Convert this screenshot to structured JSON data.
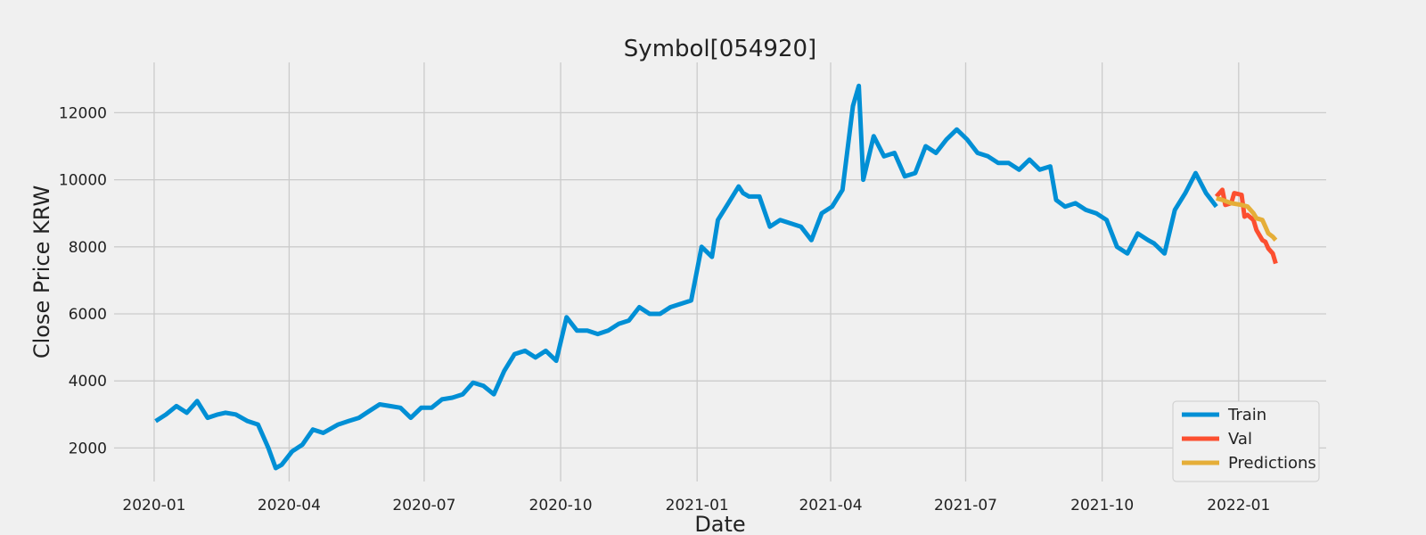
{
  "chart_data": {
    "type": "line",
    "title": "Symbol[054920]",
    "xlabel": "Date",
    "ylabel": "Close Price KRW",
    "x_tick_labels": [
      "2020-01",
      "2020-04",
      "2020-07",
      "2020-10",
      "2021-01",
      "2021-04",
      "2021-07",
      "2021-10",
      "2022-01"
    ],
    "x_ticks": [
      "2020-01-01",
      "2020-04-01",
      "2020-07-01",
      "2020-10-01",
      "2021-01-01",
      "2021-04-01",
      "2021-07-01",
      "2021-10-01",
      "2022-01-01"
    ],
    "y_ticks": [
      2000,
      4000,
      6000,
      8000,
      10000,
      12000
    ],
    "y_tick_labels": [
      "2000",
      "4000",
      "6000",
      "8000",
      "10000",
      "12000"
    ],
    "xlim": [
      "2019-12-05",
      "2022-03-01"
    ],
    "ylim": [
      1000,
      13500
    ],
    "grid": true,
    "legend_position": "bottom-right",
    "series": [
      {
        "name": "Train",
        "color": "#008fd5",
        "x": [
          "2020-01-02",
          "2020-01-09",
          "2020-01-16",
          "2020-01-23",
          "2020-01-30",
          "2020-02-06",
          "2020-02-13",
          "2020-02-18",
          "2020-02-25",
          "2020-03-04",
          "2020-03-11",
          "2020-03-18",
          "2020-03-23",
          "2020-03-27",
          "2020-04-03",
          "2020-04-10",
          "2020-04-17",
          "2020-04-24",
          "2020-05-04",
          "2020-05-11",
          "2020-05-18",
          "2020-05-25",
          "2020-06-01",
          "2020-06-08",
          "2020-06-15",
          "2020-06-22",
          "2020-06-29",
          "2020-07-06",
          "2020-07-13",
          "2020-07-20",
          "2020-07-27",
          "2020-08-03",
          "2020-08-10",
          "2020-08-17",
          "2020-08-24",
          "2020-08-31",
          "2020-09-07",
          "2020-09-14",
          "2020-09-21",
          "2020-09-28",
          "2020-10-05",
          "2020-10-12",
          "2020-10-19",
          "2020-10-26",
          "2020-11-02",
          "2020-11-09",
          "2020-11-16",
          "2020-11-23",
          "2020-11-30",
          "2020-12-07",
          "2020-12-14",
          "2020-12-21",
          "2020-12-28",
          "2021-01-04",
          "2021-01-11",
          "2021-01-15",
          "2021-01-22",
          "2021-01-29",
          "2021-02-01",
          "2021-02-05",
          "2021-02-12",
          "2021-02-19",
          "2021-02-26",
          "2021-03-05",
          "2021-03-12",
          "2021-03-19",
          "2021-03-26",
          "2021-04-02",
          "2021-04-09",
          "2021-04-16",
          "2021-04-20",
          "2021-04-23",
          "2021-04-30",
          "2021-05-07",
          "2021-05-14",
          "2021-05-21",
          "2021-05-28",
          "2021-06-04",
          "2021-06-11",
          "2021-06-18",
          "2021-06-25",
          "2021-07-02",
          "2021-07-09",
          "2021-07-16",
          "2021-07-23",
          "2021-07-30",
          "2021-08-06",
          "2021-08-13",
          "2021-08-20",
          "2021-08-27",
          "2021-08-31",
          "2021-09-06",
          "2021-09-13",
          "2021-09-20",
          "2021-09-27",
          "2021-10-04",
          "2021-10-11",
          "2021-10-18",
          "2021-10-25",
          "2021-11-01",
          "2021-11-05",
          "2021-11-12",
          "2021-11-19",
          "2021-11-26",
          "2021-12-03",
          "2021-12-10",
          "2021-12-17"
        ],
        "y": [
          2800,
          3000,
          3250,
          3050,
          3400,
          2900,
          3000,
          3050,
          3000,
          2800,
          2700,
          2000,
          1400,
          1500,
          1900,
          2100,
          2550,
          2450,
          2700,
          2800,
          2900,
          3100,
          3300,
          3250,
          3200,
          2900,
          3200,
          3200,
          3450,
          3500,
          3600,
          3950,
          3850,
          3600,
          4300,
          4800,
          4900,
          4700,
          4900,
          4600,
          5900,
          5500,
          5500,
          5400,
          5500,
          5700,
          5800,
          6200,
          6000,
          6000,
          6200,
          6300,
          6400,
          8000,
          7700,
          8800,
          9300,
          9800,
          9600,
          9500,
          9500,
          8600,
          8800,
          8700,
          8600,
          8200,
          9000,
          9200,
          9700,
          12200,
          12800,
          10000,
          11300,
          10700,
          10800,
          10100,
          10200,
          11000,
          10800,
          11200,
          11500,
          11200,
          10800,
          10700,
          10500,
          10500,
          10300,
          10600,
          10300,
          10400,
          9400,
          9200,
          9300,
          9100,
          9000,
          8800,
          8000,
          7800,
          8400,
          8200,
          8100,
          7800,
          9100,
          9600,
          10200,
          9600,
          9200
        ]
      },
      {
        "name": "Val",
        "color": "#fc4f30",
        "x": [
          "2021-12-17",
          "2021-12-21",
          "2021-12-23",
          "2021-12-27",
          "2021-12-29",
          "2022-01-03",
          "2022-01-05",
          "2022-01-07",
          "2022-01-11",
          "2022-01-13",
          "2022-01-17",
          "2022-01-19",
          "2022-01-21",
          "2022-01-24",
          "2022-01-26"
        ],
        "y": [
          9500,
          9700,
          9250,
          9300,
          9600,
          9550,
          8900,
          8950,
          8800,
          8500,
          8200,
          8150,
          7950,
          7800,
          7500
        ]
      },
      {
        "name": "Predictions",
        "color": "#e5ae38",
        "x": [
          "2021-12-17",
          "2021-12-21",
          "2021-12-27",
          "2022-01-03",
          "2022-01-07",
          "2022-01-11",
          "2022-01-13",
          "2022-01-17",
          "2022-01-19",
          "2022-01-21",
          "2022-01-24",
          "2022-01-26"
        ],
        "y": [
          9450,
          9400,
          9300,
          9250,
          9200,
          9000,
          8850,
          8800,
          8600,
          8400,
          8300,
          8200
        ]
      }
    ]
  }
}
